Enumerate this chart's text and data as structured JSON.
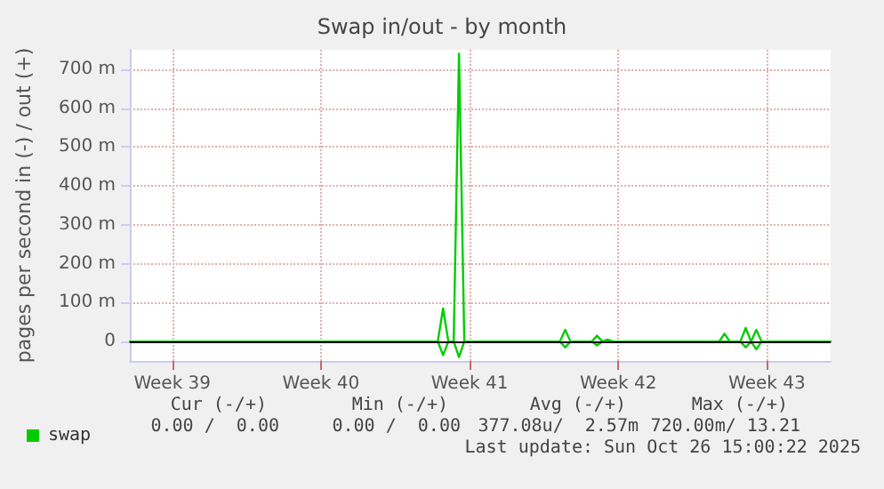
{
  "chart_data": {
    "type": "line",
    "title": "Swap in/out - by month",
    "ylabel": "pages per second in (-) / out (+)",
    "categories": [
      null,
      null,
      null,
      null,
      null,
      null,
      null,
      null,
      "Week 39",
      null,
      null,
      null,
      null,
      null,
      null,
      null,
      null,
      null,
      null,
      null,
      null,
      null,
      null,
      null,
      null,
      null,
      null,
      null,
      null,
      null,
      null,
      null,
      null,
      null,
      null,
      null,
      "Week 40",
      null,
      null,
      null,
      null,
      null,
      null,
      null,
      null,
      null,
      null,
      null,
      null,
      null,
      null,
      null,
      null,
      null,
      null,
      null,
      null,
      null,
      null,
      null,
      null,
      null,
      null,
      null,
      "Week 41",
      null,
      null,
      null,
      null,
      null,
      null,
      null,
      null,
      null,
      null,
      null,
      null,
      null,
      null,
      null,
      null,
      null,
      null,
      null,
      null,
      null,
      null,
      null,
      null,
      null,
      null,
      null,
      "Week 42",
      null,
      null,
      null,
      null,
      null,
      null,
      null,
      null,
      null,
      null,
      null,
      null,
      null,
      null,
      null,
      null,
      null,
      null,
      null,
      null,
      null,
      null,
      null,
      null,
      null,
      null,
      null,
      "Week 43",
      null,
      null,
      null,
      null,
      null,
      null,
      null,
      null,
      null,
      null,
      null,
      null
    ],
    "ylim": [
      -50,
      750
    ],
    "yticks": [
      0,
      {
        "value": 100,
        "label": "100 m"
      },
      {
        "value": 200,
        "label": "200 m"
      },
      {
        "value": 300,
        "label": "300 m"
      },
      {
        "value": 400,
        "label": "400 m"
      },
      {
        "value": 500,
        "label": "500 m"
      },
      {
        "value": 600,
        "label": "600 m"
      },
      {
        "value": 700,
        "label": "700 m"
      }
    ],
    "series": [
      {
        "name": "swap",
        "color": "#00cc00",
        "values": [
          0,
          0,
          0,
          0,
          0,
          0,
          0,
          0,
          0,
          0,
          0,
          0,
          0,
          0,
          0,
          0,
          0,
          0,
          0,
          0,
          0,
          0,
          0,
          0,
          0,
          0,
          0,
          0,
          0,
          0,
          0,
          0,
          0,
          0,
          0,
          0,
          0,
          0,
          0,
          0,
          0,
          0,
          0,
          0,
          0,
          0,
          0,
          0,
          0,
          0,
          0,
          0,
          0,
          0,
          0,
          0,
          0,
          0,
          0,
          85,
          0,
          0,
          740,
          0,
          0,
          0,
          0,
          0,
          0,
          0,
          0,
          0,
          0,
          0,
          0,
          0,
          0,
          0,
          0,
          0,
          0,
          0,
          30,
          0,
          0,
          0,
          0,
          0,
          15,
          0,
          5,
          0,
          0,
          0,
          0,
          0,
          0,
          0,
          0,
          0,
          0,
          0,
          0,
          0,
          0,
          0,
          0,
          0,
          0,
          0,
          0,
          0,
          20,
          0,
          0,
          0,
          35,
          0,
          30,
          0,
          0,
          0,
          0,
          0,
          0,
          0,
          0,
          0,
          0,
          0,
          0,
          0,
          0
        ]
      },
      {
        "color": "#00cc00",
        "values": [
          0,
          0,
          0,
          0,
          0,
          0,
          0,
          0,
          0,
          0,
          0,
          0,
          0,
          0,
          0,
          0,
          0,
          0,
          0,
          0,
          0,
          0,
          0,
          0,
          0,
          0,
          0,
          0,
          0,
          0,
          0,
          0,
          0,
          0,
          0,
          0,
          0,
          0,
          0,
          0,
          0,
          0,
          0,
          0,
          0,
          0,
          0,
          0,
          0,
          0,
          0,
          0,
          0,
          0,
          0,
          0,
          0,
          0,
          0,
          -35,
          0,
          0,
          -40,
          0,
          0,
          0,
          0,
          0,
          0,
          0,
          0,
          0,
          0,
          0,
          0,
          0,
          0,
          0,
          0,
          0,
          0,
          0,
          -15,
          0,
          0,
          0,
          0,
          0,
          -10,
          0,
          0,
          0,
          0,
          0,
          0,
          0,
          0,
          0,
          0,
          0,
          0,
          0,
          0,
          0,
          0,
          0,
          0,
          0,
          0,
          0,
          0,
          0,
          0,
          0,
          0,
          0,
          -15,
          0,
          -20,
          0,
          0,
          0,
          0,
          0,
          0,
          0,
          0,
          0,
          0,
          0,
          0,
          0,
          0
        ]
      }
    ],
    "ref_lines": [
      {
        "axis": "y",
        "value": 0,
        "color": "#000000"
      }
    ],
    "grid": true,
    "legend": "bottom left",
    "marker": "none",
    "line_style": "solid",
    "annotations": [
      "Cur (-/+)",
      "Min (-/+)",
      "Avg (-/+)",
      "Max (-/+)",
      "0.00 /  0.00",
      "0.00 /  0.00",
      "377.08u/  2.57m",
      "720.00m/ 13.21",
      "Last update: Sun Oct 26 15:00:22 2025"
    ]
  }
}
